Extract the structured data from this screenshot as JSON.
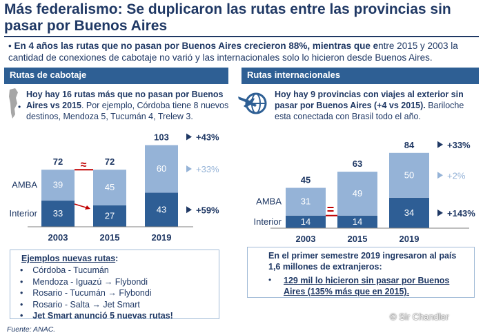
{
  "title": "Más federalismo: Se duplicaron las rutas entre las provincias sin pasar por Buenos Aires",
  "lead_bold": "En 4 años las rutas que no pasan por Buenos Aires crecieron 88%, mientras que e",
  "lead_rest": "ntre 2015 y 2003 la cantidad de conexiones de cabotaje no varió y las internacionales solo lo hicieron desde Buenos Aires.",
  "left_section": "Rutas de cabotaje",
  "right_section": "Rutas internacionales",
  "left_intro_bold": "Hoy hay 16 rutas más que no pasan por Buenos Aires vs 2015",
  "left_intro_rest": ". Por ejemplo, Córdoba tiene 8 nuevos destinos, Mendoza 5, Tucumán 4, Trelew 3.",
  "right_intro_bold": "Hoy hay 9 provincias con viajes al exterior sin pasar por Buenos Aires (+4 vs 2015).",
  "right_intro_rest": " Bariloche esta conectada con Brasil todo el año.",
  "left_box": {
    "title": "Ejemplos nuevas rutas",
    "title_suffix": ":",
    "items": [
      "Córdoba - Tucumán",
      "Mendoza - Iguazú → Flybondi",
      "Rosario - Tucumán → Flybondi",
      "Rosario - Salta → Jet Smart",
      "Jet Smart anunció 5 nuevas rutas!"
    ]
  },
  "right_box": {
    "intro": "En el primer semestre 2019 ingresaron al país 1,6 millones de extranjeros:",
    "item": "129 mil lo hicieron sin pasar por Buenos Aires (135% más que en 2015)."
  },
  "source": "Fuente: ANAC.",
  "watermark": "© Sir Chandler",
  "colors": {
    "dark": "#2e5e95",
    "light": "#95b3d7",
    "navy": "#1f3864",
    "red": "#c00000"
  },
  "chart_data": [
    {
      "type": "bar",
      "stacked": true,
      "categories": [
        "2003",
        "2015",
        "2019"
      ],
      "series": [
        {
          "name": "Interior",
          "values": [
            33,
            27,
            43
          ]
        },
        {
          "name": "AMBA",
          "values": [
            39,
            45,
            60
          ]
        }
      ],
      "totals": [
        72,
        72,
        103
      ],
      "annotations": {
        "total_change": "+43%",
        "amba_change": "+33%",
        "interior_change": "+59%",
        "between_totals": "≈"
      }
    },
    {
      "type": "bar",
      "stacked": true,
      "categories": [
        "2003",
        "2015",
        "2019"
      ],
      "series": [
        {
          "name": "Interior",
          "values": [
            14,
            14,
            34
          ]
        },
        {
          "name": "AMBA",
          "values": [
            31,
            49,
            50
          ]
        }
      ],
      "totals": [
        45,
        63,
        84
      ],
      "annotations": {
        "total_change": "+33%",
        "amba_change": "+2%",
        "interior_change": "+143%",
        "between_interior": "="
      }
    }
  ]
}
